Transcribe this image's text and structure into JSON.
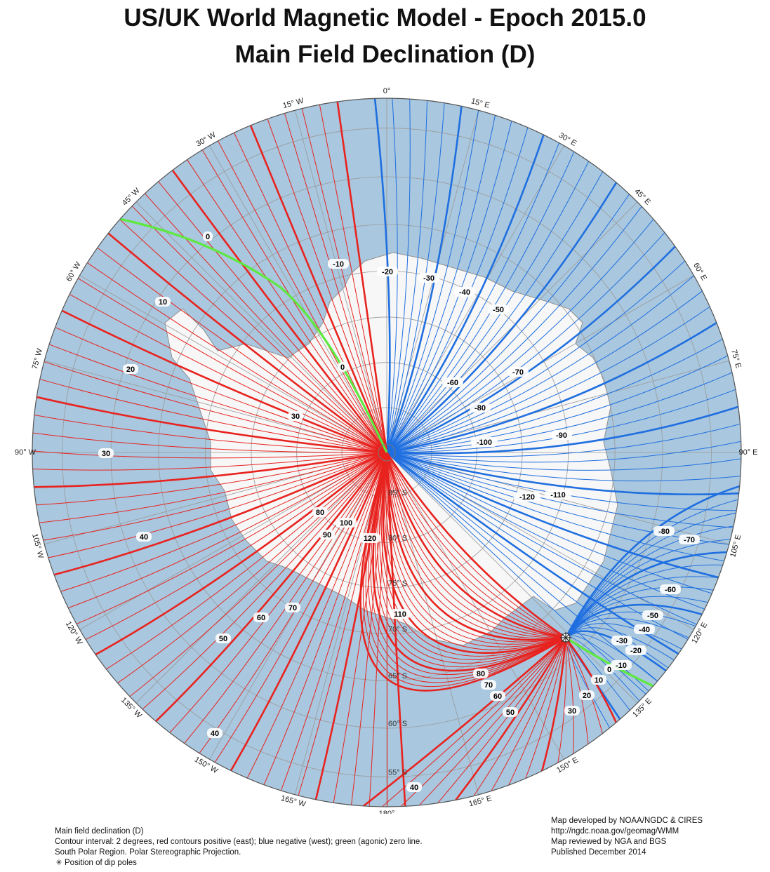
{
  "title": {
    "line1": "US/UK World Magnetic Model - Epoch 2015.0",
    "line2": "Main Field Declination (D)"
  },
  "colors": {
    "ocean": "#a9c7de",
    "land": "#f7f7f7",
    "positive": "#e8231f",
    "negative": "#1f6fe0",
    "agonic": "#5ee840",
    "graticule": "#9a9a9a"
  },
  "longitude_labels": [
    {
      "text": "0°",
      "lon": 0
    },
    {
      "text": "15° E",
      "lon": 15
    },
    {
      "text": "30° E",
      "lon": 30
    },
    {
      "text": "45° E",
      "lon": 45
    },
    {
      "text": "60° E",
      "lon": 60
    },
    {
      "text": "75° E",
      "lon": 75
    },
    {
      "text": "90° E",
      "lon": 90
    },
    {
      "text": "105° E",
      "lon": 105
    },
    {
      "text": "120° E",
      "lon": 120
    },
    {
      "text": "135° E",
      "lon": 135
    },
    {
      "text": "150° E",
      "lon": 150
    },
    {
      "text": "165° E",
      "lon": 165
    },
    {
      "text": "180°",
      "lon": 180
    },
    {
      "text": "165° W",
      "lon": 195
    },
    {
      "text": "150° W",
      "lon": 210
    },
    {
      "text": "135° W",
      "lon": 225
    },
    {
      "text": "120° W",
      "lon": 240
    },
    {
      "text": "105° W",
      "lon": 255
    },
    {
      "text": "90° W",
      "lon": 270
    },
    {
      "text": "75° W",
      "lon": 285
    },
    {
      "text": "60° W",
      "lon": 300
    },
    {
      "text": "45° W",
      "lon": 315
    },
    {
      "text": "30° W",
      "lon": 330
    },
    {
      "text": "15° W",
      "lon": 345
    }
  ],
  "latitude_labels": [
    {
      "text": "85° S",
      "lat": 85
    },
    {
      "text": "80° S",
      "lat": 80
    },
    {
      "text": "75° S",
      "lat": 75
    },
    {
      "text": "70° S",
      "lat": 70
    },
    {
      "text": "65° S",
      "lat": 65
    },
    {
      "text": "60° S",
      "lat": 60
    },
    {
      "text": "55° S",
      "lat": 55
    }
  ],
  "contour_labels": {
    "negative": [
      "-10",
      "-20",
      "-30",
      "-40",
      "-50",
      "-60",
      "-70",
      "-80",
      "-90",
      "-100",
      "-110",
      "-120",
      "-80",
      "-70",
      "-60",
      "-50",
      "-40",
      "-30",
      "-20",
      "-10"
    ],
    "zero": [
      "0",
      "0",
      "0"
    ],
    "positive": [
      "10",
      "20",
      "30",
      "30",
      "40",
      "40",
      "40",
      "50",
      "50",
      "60",
      "60",
      "70",
      "70",
      "80",
      "80",
      "90",
      "100",
      "120",
      "110",
      "10",
      "20",
      "30"
    ]
  },
  "footer": {
    "left": [
      "Main field declination (D)",
      "Contour interval: 2 degrees, red contours positive (east); blue negative (west); green (agonic) zero line.",
      "South Polar Region. Polar Stereographic Projection."
    ],
    "legend_icon": "dip-pole-star-icon",
    "legend_text": "Position of dip poles",
    "right": [
      "Map developed by NOAA/NGDC & CIRES",
      "http://ngdc.noaa.gov/geomag/WMM",
      "Map reviewed by NGA and BGS",
      "Published December 2014"
    ]
  }
}
